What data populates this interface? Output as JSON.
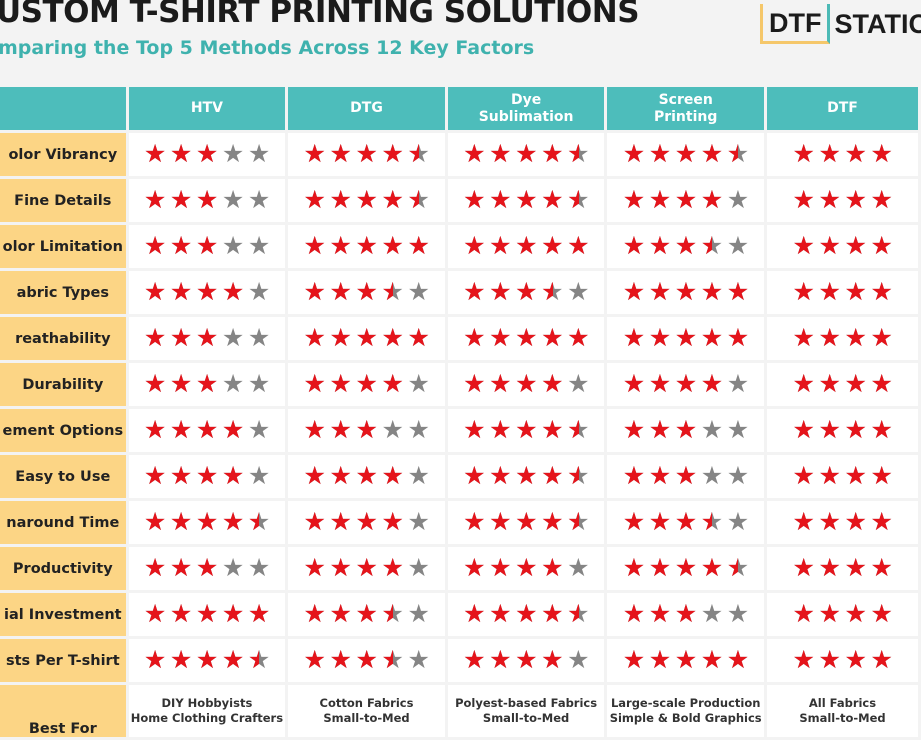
{
  "header": {
    "title": "USTOM T-SHIRT PRINTING SOLUTIONS",
    "subtitle": "mparing the Top 5 Methods Across 12 Key Factors",
    "logo": {
      "boxed": "DTF",
      "rest": "STATIC"
    }
  },
  "colors": {
    "header_bg": "#4dbdbb",
    "label_bg": "#fcd585",
    "star_on": "#e5141b",
    "star_off": "#858585",
    "subtitle": "#3fb2ae"
  },
  "table": {
    "methods": [
      "HTV",
      "DTG",
      "Dye\nSublimation",
      "Screen\nPrinting",
      "DTF"
    ],
    "rows": [
      {
        "label": "olor Vibrancy",
        "ratings": [
          3,
          4.5,
          4.5,
          4.5,
          4
        ]
      },
      {
        "label": "Fine Details",
        "ratings": [
          3,
          4.5,
          4.5,
          4,
          4
        ]
      },
      {
        "label": "olor Limitation",
        "ratings": [
          3,
          5,
          5,
          3.5,
          4
        ]
      },
      {
        "label": "abric Types",
        "ratings": [
          4,
          3.5,
          3.5,
          5,
          4
        ]
      },
      {
        "label": "reathability",
        "ratings": [
          3,
          5,
          5,
          5,
          4
        ]
      },
      {
        "label": "Durability",
        "ratings": [
          3,
          4,
          4,
          4,
          4
        ]
      },
      {
        "label": "ement Options",
        "ratings": [
          4,
          3,
          4.5,
          3,
          4
        ]
      },
      {
        "label": "Easy to Use",
        "ratings": [
          4,
          4,
          4.5,
          3,
          4
        ]
      },
      {
        "label": "naround Time",
        "ratings": [
          4.5,
          4,
          4.5,
          3.5,
          4
        ]
      },
      {
        "label": "Productivity",
        "ratings": [
          3,
          4,
          4,
          4.5,
          4
        ]
      },
      {
        "label": "ial Investment",
        "ratings": [
          5,
          3.5,
          4.5,
          3,
          4
        ]
      },
      {
        "label": "sts Per T-shirt",
        "ratings": [
          4.5,
          3.5,
          4,
          5,
          4
        ]
      }
    ],
    "best_for": {
      "label": "Best For",
      "values": [
        "DIY Hobbyists\nHome Clothing Crafters",
        "Cotton Fabrics\nSmall-to-Med",
        "Polyest-based Fabrics\nSmall-to-Med",
        "Large-scale Production\nSimple & Bold Graphics",
        "All Fabrics\nSmall-to-Med"
      ]
    }
  }
}
